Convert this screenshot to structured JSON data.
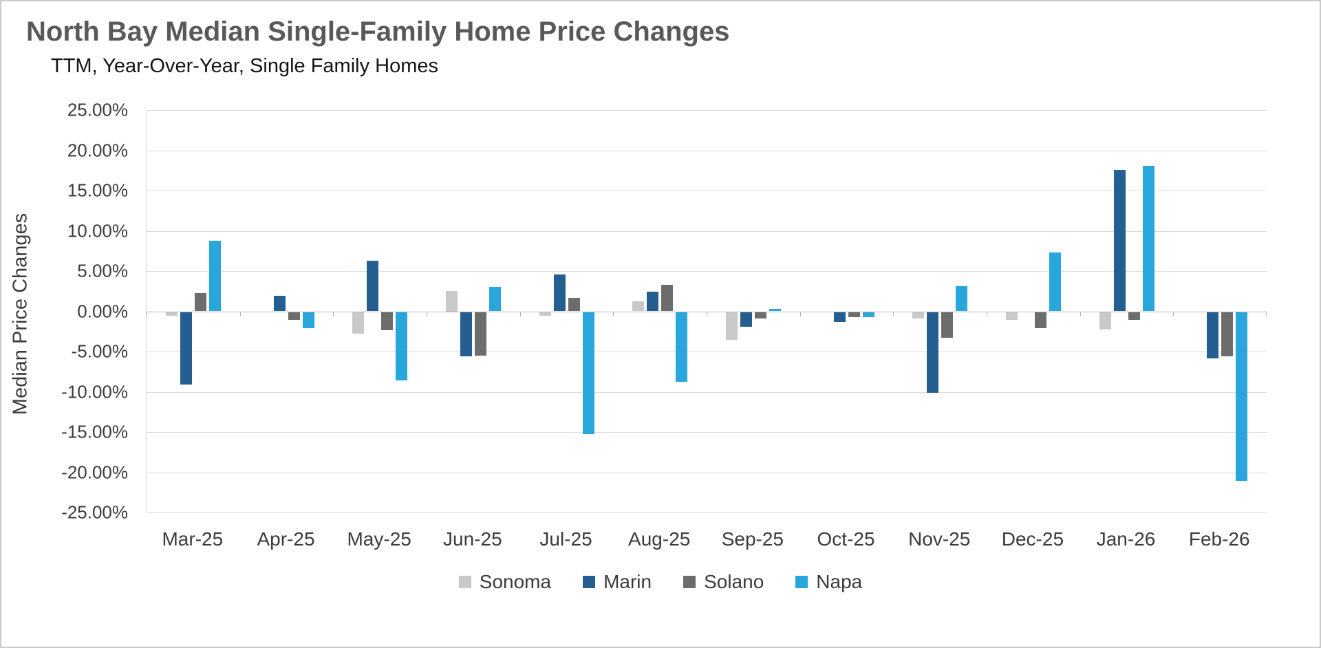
{
  "page": {
    "background": "#ffffff",
    "border_color": "#c9c9c9"
  },
  "chart_data": {
    "type": "bar",
    "title": "North Bay Median Single-Family Home Price Changes",
    "subtitle": "TTM, Year-Over-Year, Single Family Homes",
    "ylabel": "Median Price Changes",
    "xlabel": "",
    "ylim": [
      -25,
      25
    ],
    "ytick_step": 5,
    "ytick_labels": [
      "25.00%",
      "20.00%",
      "15.00%",
      "10.00%",
      "5.00%",
      "0.00%",
      "-5.00%",
      "-10.00%",
      "-15.00%",
      "-20.00%",
      "-25.00%"
    ],
    "grid": true,
    "legend_position": "bottom",
    "categories": [
      "Mar-25",
      "Apr-25",
      "May-25",
      "Jun-25",
      "Jul-25",
      "Aug-25",
      "Sep-25",
      "Oct-25",
      "Nov-25",
      "Dec-25",
      "Jan-26",
      "Feb-26"
    ],
    "series": [
      {
        "name": "Sonoma",
        "color": "#c9c9c9",
        "values": [
          -0.5,
          0.0,
          -2.7,
          2.5,
          -0.5,
          1.2,
          -3.5,
          0.0,
          -0.8,
          -1.0,
          -2.2,
          0.0
        ]
      },
      {
        "name": "Marin",
        "color": "#255e91",
        "values": [
          -9.0,
          1.9,
          6.3,
          -5.5,
          4.6,
          2.4,
          -1.8,
          -1.2,
          -10.0,
          0.0,
          17.6,
          -5.8
        ]
      },
      {
        "name": "Solano",
        "color": "#6d6d6d",
        "values": [
          2.3,
          -1.0,
          -2.3,
          -5.4,
          1.7,
          3.3,
          -0.8,
          -0.6,
          -3.2,
          -2.0,
          -1.0,
          -5.5
        ]
      },
      {
        "name": "Napa",
        "color": "#29a7dd",
        "values": [
          8.8,
          -2.0,
          -8.5,
          3.0,
          -15.2,
          -8.7,
          0.3,
          -0.6,
          3.1,
          7.3,
          18.1,
          -21.0
        ]
      }
    ]
  }
}
